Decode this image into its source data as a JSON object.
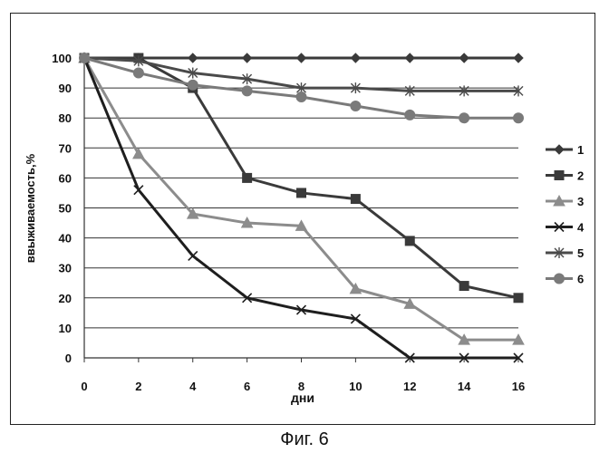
{
  "figure": {
    "caption": "Фиг. 6"
  },
  "chart_data": {
    "type": "line",
    "title": "",
    "xlabel": "дни",
    "ylabel": "ввыживаемость,%",
    "x": [
      0,
      2,
      4,
      6,
      8,
      10,
      12,
      14,
      16
    ],
    "xlim": [
      0,
      16
    ],
    "ylim": [
      0,
      100
    ],
    "xticks": [
      0,
      2,
      4,
      6,
      8,
      10,
      12,
      14,
      16
    ],
    "yticks": [
      0,
      10,
      20,
      30,
      40,
      50,
      60,
      70,
      80,
      90,
      100
    ],
    "grid": "horizontal",
    "legend_position": "right",
    "series": [
      {
        "name": "1",
        "marker": "diamond",
        "color": "#3a3a3a",
        "values": [
          100,
          100,
          100,
          100,
          100,
          100,
          100,
          100,
          100
        ]
      },
      {
        "name": "2",
        "marker": "square",
        "color": "#3a3a3a",
        "values": [
          100,
          100,
          90,
          60,
          55,
          53,
          39,
          24,
          20
        ]
      },
      {
        "name": "3",
        "marker": "triangle",
        "color": "#8c8c8c",
        "values": [
          100,
          68,
          48,
          45,
          44,
          23,
          18,
          6,
          6
        ]
      },
      {
        "name": "4",
        "marker": "x",
        "color": "#1e1e1e",
        "values": [
          100,
          56,
          34,
          20,
          16,
          13,
          0,
          0,
          0
        ]
      },
      {
        "name": "5",
        "marker": "star",
        "color": "#4a4a4a",
        "values": [
          100,
          99,
          95,
          93,
          90,
          90,
          89,
          89,
          89
        ]
      },
      {
        "name": "6",
        "marker": "circle",
        "color": "#7a7a7a",
        "values": [
          100,
          95,
          91,
          89,
          87,
          84,
          81,
          80,
          80
        ]
      }
    ]
  }
}
